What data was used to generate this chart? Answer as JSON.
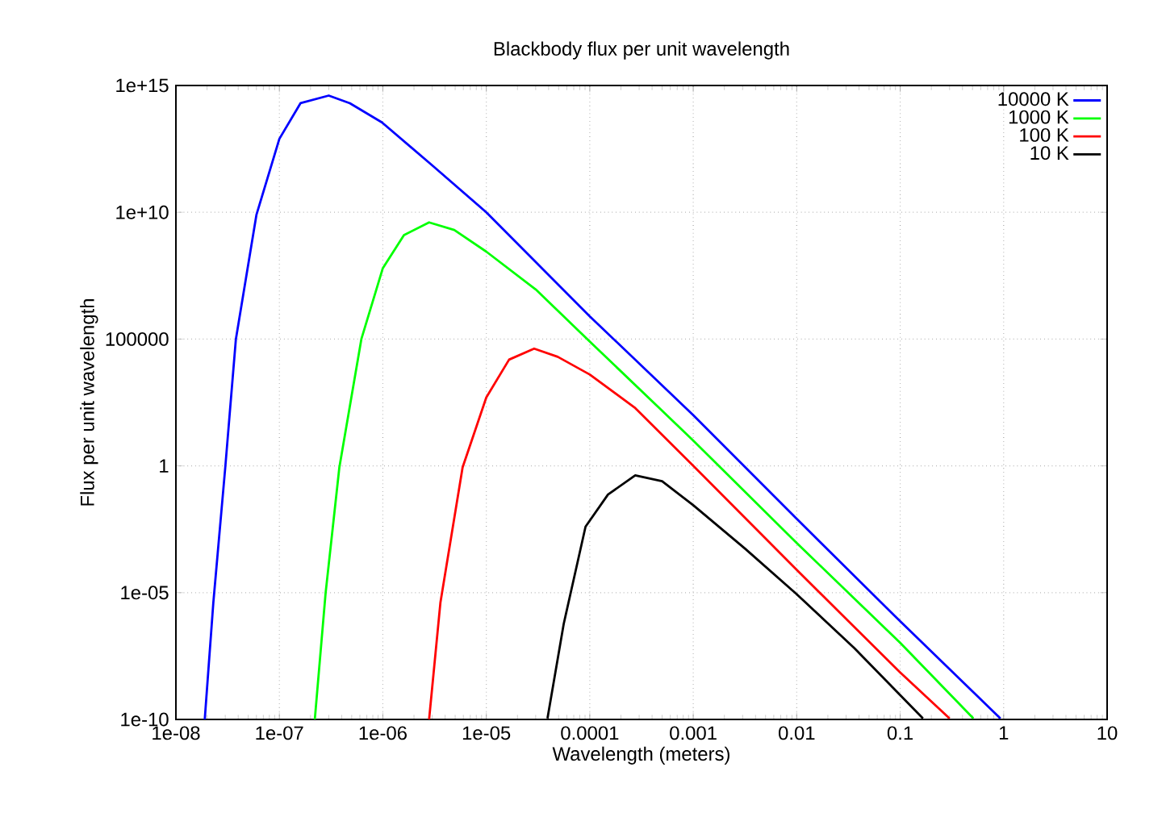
{
  "chart_data": {
    "type": "line",
    "title": "Blackbody flux per unit wavelength",
    "xlabel": "Wavelength (meters)",
    "ylabel": "Flux per unit wavelength",
    "log": "xy",
    "grid": true,
    "legend": "top right",
    "xlim": [
      1e-08,
      10
    ],
    "ylim": [
      1e-10,
      1000000000000000.0
    ],
    "xticks": [
      {
        "value": 1e-08,
        "label": "1e-08"
      },
      {
        "value": 1e-07,
        "label": "1e-07"
      },
      {
        "value": 1e-06,
        "label": "1e-06"
      },
      {
        "value": 1e-05,
        "label": "1e-05"
      },
      0.0001,
      0.001,
      0.01,
      0.1,
      1,
      10
    ],
    "yticks": [
      {
        "value": 1e-10,
        "label": "1e-10"
      },
      {
        "value": 1e-05,
        "label": "1e-05"
      },
      1,
      100000,
      {
        "value": 10000000000.0,
        "label": "1e+10"
      },
      {
        "value": 1000000000000000.0,
        "label": "1e+15"
      }
    ],
    "series": [
      {
        "name": "10000 K",
        "color": "#0000ff",
        "x": [
          1.9e-08,
          2.3e-08,
          3e-08,
          3.8e-08,
          6e-08,
          1e-07,
          1.6e-07,
          3e-07,
          4.8e-07,
          9.8e-07,
          3e-06,
          1e-05,
          0.0001,
          0.001,
          0.01,
          0.1,
          0.93
        ],
        "values": [
          1e-10,
          4e-06,
          0.87,
          100000.0,
          7900000000.0,
          7900000000000.0,
          200000000000000.0,
          400000000000000.0,
          200000000000000.0,
          35000000000000.0,
          710000000000.0,
          10000000000.0,
          790000.0,
          100,
          0.0081,
          7.4e-07,
          1.1e-10
        ]
      },
      {
        "name": "1000 K",
        "color": "#00ff00",
        "x": [
          2.2e-07,
          2.8e-07,
          3.8e-07,
          6.2e-07,
          1e-06,
          1.6e-06,
          2.8e-06,
          4.9e-06,
          1e-05,
          3e-05,
          0.0001,
          0.001,
          0.01,
          0.1,
          0.51
        ],
        "values": [
          1e-10,
          1e-05,
          0.87,
          100000.0,
          63000000.0,
          1260000000.0,
          4000000000.0,
          2000000000.0,
          280000000.0,
          9100000.0,
          80000.0,
          10,
          0.00091,
          1.05e-07,
          1.1e-10
        ]
      },
      {
        "name": "100 K",
        "color": "#ff0000",
        "x": [
          2.8e-06,
          3.6e-06,
          5.9e-06,
          1e-05,
          1.66e-05,
          2.9e-05,
          4.9e-05,
          0.0001,
          0.000275,
          0.001,
          0.01,
          0.1,
          0.3
        ],
        "values": [
          1e-10,
          4e-06,
          0.87,
          500,
          15500.0,
          42000.0,
          20000.0,
          4000.0,
          190,
          1,
          7.9e-05,
          7.1e-09,
          1.1e-10
        ]
      },
      {
        "name": "10 K",
        "color": "#000000",
        "x": [
          3.9e-05,
          5.6e-05,
          9.1e-05,
          0.00015,
          0.000275,
          0.0005,
          0.001,
          0.00316,
          0.01,
          0.036,
          0.166
        ],
        "values": [
          1.1e-10,
          5.9e-07,
          0.004,
          0.074,
          0.42,
          0.25,
          0.028,
          0.00055,
          8.7e-06,
          6.5e-08,
          1.1e-10
        ]
      }
    ]
  }
}
